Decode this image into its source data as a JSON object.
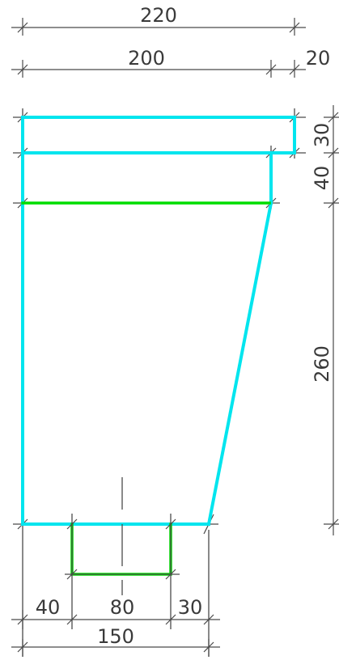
{
  "dimensions": {
    "top_overall": "220",
    "top_main": "200",
    "top_extra": "20",
    "right_top": "30",
    "right_mid": "40",
    "right_main": "260",
    "bottom_left": "40",
    "bottom_mid": "80",
    "bottom_right": "30",
    "bottom_overall": "150"
  },
  "colors": {
    "outline": "#00e5ee",
    "highlight": "#00dd00",
    "dimension": "#4a4a4a"
  }
}
